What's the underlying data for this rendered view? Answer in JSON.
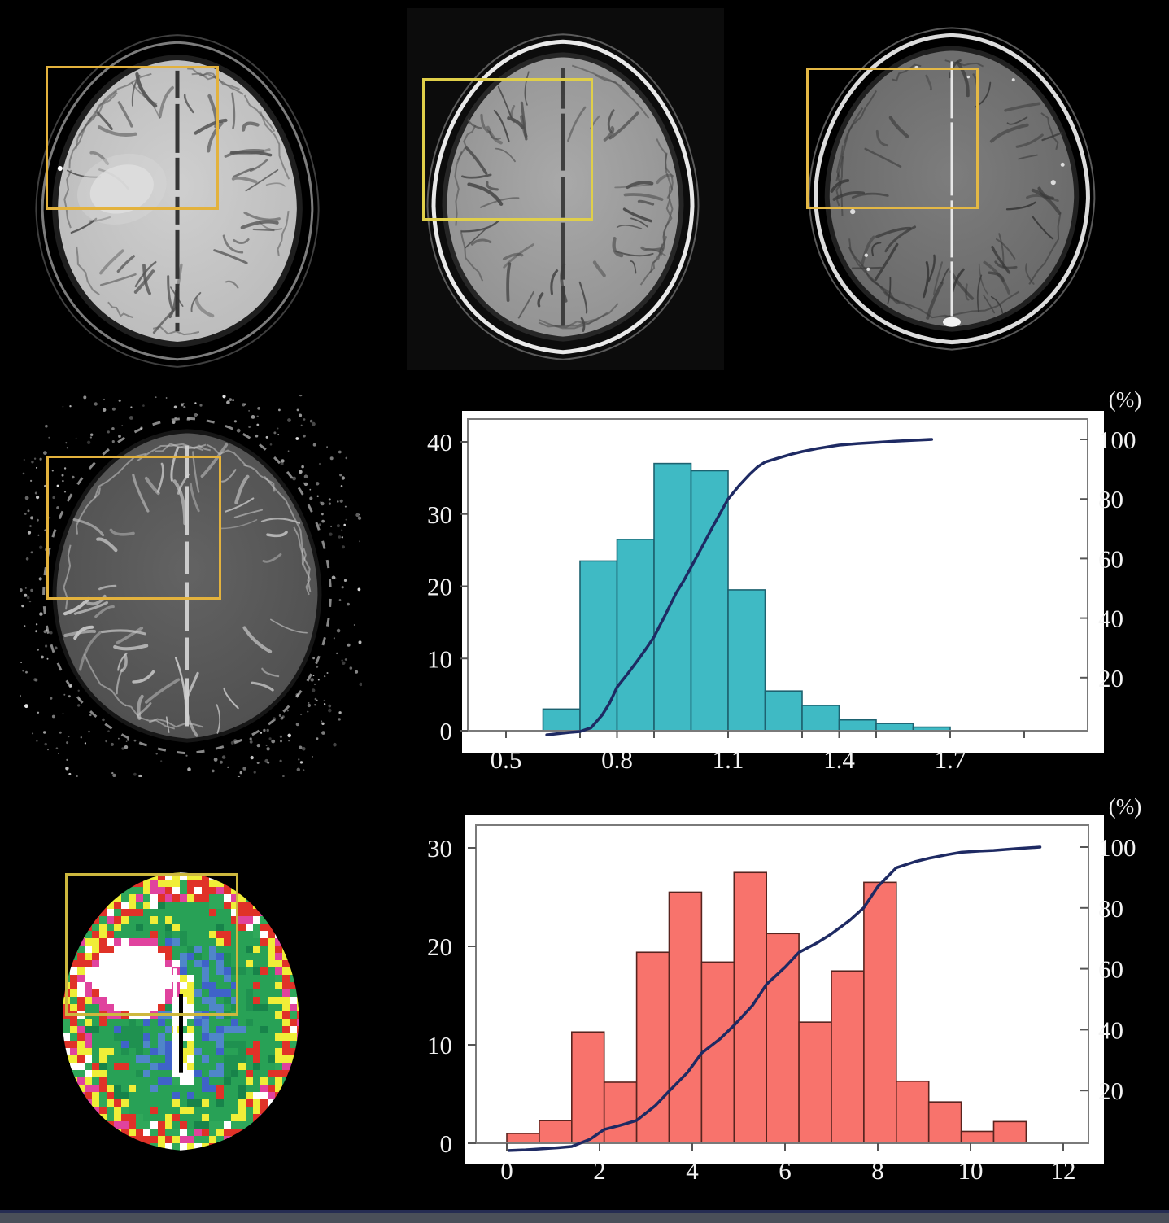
{
  "colors": {
    "background": "#000000",
    "panel_bg": "#ffffff",
    "plot_frame": "#7a7a7a",
    "tick": "#555555",
    "tick_text": "#f2f2f2",
    "roi_box": "#e3b23d",
    "footer_line": "#252c52",
    "footer_strip": "#4a4f59",
    "cumulative_line": "#1e2a63"
  },
  "chart_data": [
    {
      "id": "upper_histogram",
      "type": "bar",
      "title": "",
      "xlabel": "",
      "ylabel": "",
      "bin_start": 0.6,
      "bin_width": 0.1,
      "values": [
        3,
        23.5,
        26.5,
        37,
        36,
        19.5,
        5.5,
        3.5,
        1.5,
        1,
        0.5
      ],
      "x_tick_labels": [
        "0.5",
        "0.8",
        "1.1",
        "1.4",
        "1.7"
      ],
      "x_tick_values": [
        0.5,
        0.8,
        1.1,
        1.4,
        1.7
      ],
      "x_minor_ticks": [
        0.7,
        0.9,
        1.3,
        1.5,
        1.9
      ],
      "xlim": [
        0.45,
        1.95
      ],
      "y_tick_labels": [
        "0",
        "10",
        "20",
        "30",
        "40"
      ],
      "y_ticks": [
        0,
        10,
        20,
        30,
        40
      ],
      "ylim": [
        0,
        43
      ],
      "right_axis_title": "(%)",
      "right_tick_labels": [
        "20",
        "40",
        "60",
        "80",
        "100"
      ],
      "right_ticks": [
        20,
        40,
        60,
        80,
        100
      ],
      "right_lim": [
        0,
        100
      ],
      "legend": "none",
      "grid": false,
      "bar_color": "#3fbac4",
      "bar_edge_color": "#1d6270",
      "line_color": "#1e2a63",
      "cumulative_pct": [
        [
          0.61,
          0.8
        ],
        [
          0.64,
          1.2
        ],
        [
          0.67,
          1.6
        ],
        [
          0.7,
          1.9
        ],
        [
          0.73,
          3.2
        ],
        [
          0.76,
          7.5
        ],
        [
          0.78,
          11.5
        ],
        [
          0.8,
          16.8
        ],
        [
          0.83,
          21.5
        ],
        [
          0.86,
          26.5
        ],
        [
          0.88,
          30
        ],
        [
          0.9,
          33.7
        ],
        [
          0.93,
          41
        ],
        [
          0.96,
          48.5
        ],
        [
          0.98,
          52.5
        ],
        [
          1.0,
          57.1
        ],
        [
          1.03,
          64
        ],
        [
          1.06,
          71
        ],
        [
          1.08,
          75.5
        ],
        [
          1.1,
          80
        ],
        [
          1.13,
          84.5
        ],
        [
          1.16,
          88.5
        ],
        [
          1.18,
          90.8
        ],
        [
          1.2,
          92.4
        ],
        [
          1.24,
          93.9
        ],
        [
          1.27,
          95
        ],
        [
          1.3,
          95.9
        ],
        [
          1.34,
          96.9
        ],
        [
          1.38,
          97.7
        ],
        [
          1.4,
          98.1
        ],
        [
          1.45,
          98.6
        ],
        [
          1.5,
          99
        ],
        [
          1.55,
          99.4
        ],
        [
          1.6,
          99.7
        ],
        [
          1.65,
          100
        ]
      ]
    },
    {
      "id": "lower_histogram",
      "type": "bar",
      "title": "",
      "xlabel": "",
      "ylabel": "",
      "bin_start": 0,
      "bin_width": 0.7,
      "values": [
        1,
        2.3,
        11.3,
        6.2,
        19.4,
        25.5,
        18.4,
        27.5,
        21.3,
        12.3,
        17.5,
        26.5,
        6.3,
        4.2,
        1.2,
        2.2
      ],
      "x_tick_labels": [
        "0",
        "2",
        "4",
        "6",
        "8",
        "10",
        "12"
      ],
      "x_tick_values": [
        0,
        2,
        4,
        6,
        8,
        10,
        12
      ],
      "x_minor_ticks": [],
      "xlim": [
        -0.3,
        12.6
      ],
      "y_tick_labels": [
        "0",
        "10",
        "20",
        "30"
      ],
      "y_ticks": [
        0,
        10,
        20,
        30
      ],
      "ylim": [
        0,
        33
      ],
      "right_axis_title": "(%)",
      "right_tick_labels": [
        "20",
        "40",
        "60",
        "80",
        "100"
      ],
      "right_ticks": [
        20,
        40,
        60,
        80,
        100
      ],
      "right_lim": [
        0,
        100
      ],
      "legend": "none",
      "grid": false,
      "bar_color": "#f8736c",
      "bar_edge_color": "#58241f",
      "line_color": "#1e2a63",
      "cumulative_pct": [
        [
          0.05,
          0.3
        ],
        [
          0.4,
          0.5
        ],
        [
          0.7,
          0.8
        ],
        [
          1.1,
          1.2
        ],
        [
          1.4,
          1.6
        ],
        [
          1.8,
          4
        ],
        [
          2.1,
          7.2
        ],
        [
          2.5,
          8.8
        ],
        [
          2.8,
          10.2
        ],
        [
          3.2,
          15
        ],
        [
          3.5,
          19.8
        ],
        [
          3.9,
          26
        ],
        [
          4.2,
          32.3
        ],
        [
          4.6,
          37
        ],
        [
          4.9,
          41.4
        ],
        [
          5.3,
          48
        ],
        [
          5.6,
          54.9
        ],
        [
          6.0,
          60.5
        ],
        [
          6.3,
          65.4
        ],
        [
          6.7,
          68.6
        ],
        [
          7.0,
          71.5
        ],
        [
          7.4,
          76
        ],
        [
          7.7,
          80.1
        ],
        [
          8.0,
          87
        ],
        [
          8.4,
          93.2
        ],
        [
          8.8,
          95.2
        ],
        [
          9.1,
          96.3
        ],
        [
          9.5,
          97.5
        ],
        [
          9.8,
          98.3
        ],
        [
          10.2,
          98.7
        ],
        [
          10.5,
          98.9
        ],
        [
          11.0,
          99.5
        ],
        [
          11.5,
          100
        ]
      ]
    }
  ]
}
